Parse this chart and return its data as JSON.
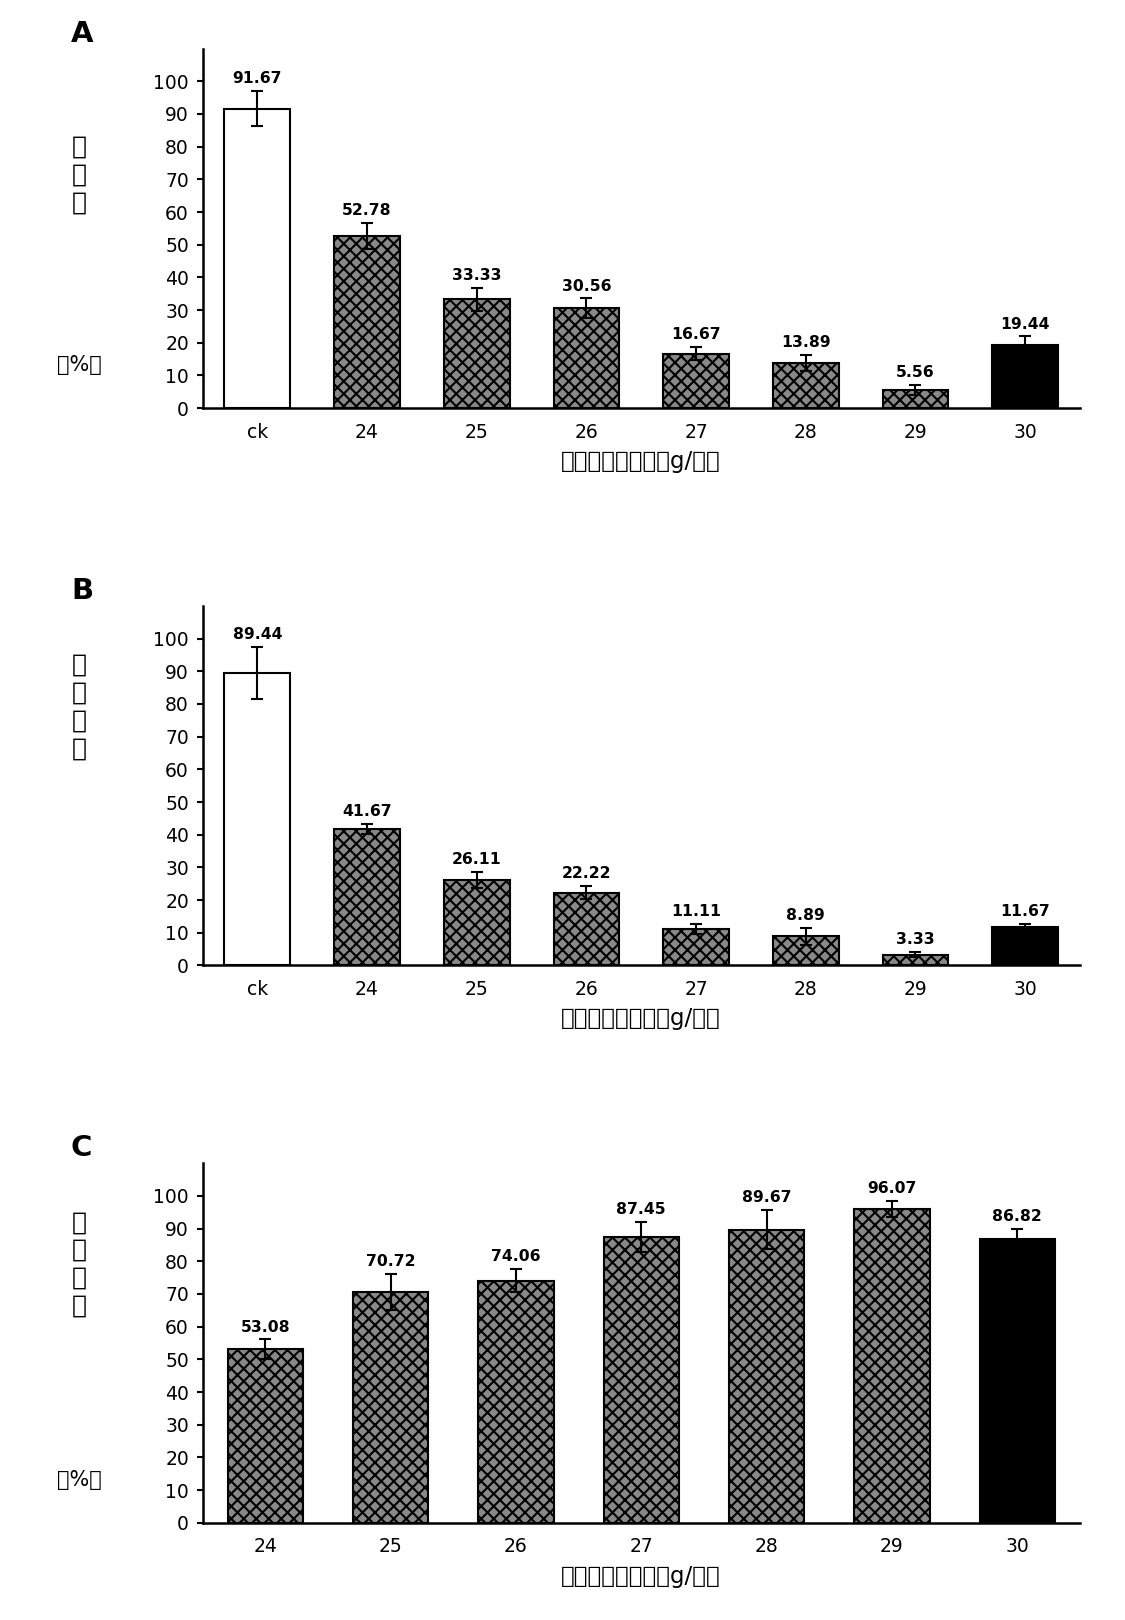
{
  "A": {
    "label": "A",
    "categories": [
      "ck",
      "24",
      "25",
      "26",
      "27",
      "28",
      "29",
      "30"
    ],
    "values": [
      91.67,
      52.78,
      33.33,
      30.56,
      16.67,
      13.89,
      5.56,
      19.44
    ],
    "errors": [
      5.5,
      4.0,
      3.5,
      3.0,
      2.0,
      2.5,
      1.5,
      2.5
    ],
    "ylabel_chars": [
      "发",
      "病",
      "率"
    ],
    "ylabel2": "（%）",
    "xlabel": "丁子香酚施用量（g/亩）",
    "ylim": [
      0,
      110
    ],
    "yticks": [
      0,
      10,
      20,
      30,
      40,
      50,
      60,
      70,
      80,
      90,
      100
    ],
    "colors": [
      "white",
      "hatch",
      "hatch",
      "hatch",
      "hatch",
      "hatch",
      "hatch",
      "black"
    ],
    "hatch": [
      "",
      "xxxx",
      "xxxx",
      "xxxx",
      "xxxx",
      "xxxx",
      "xxxx",
      ""
    ]
  },
  "B": {
    "label": "B",
    "categories": [
      "ck",
      "24",
      "25",
      "26",
      "27",
      "28",
      "29",
      "30"
    ],
    "values": [
      89.44,
      41.67,
      26.11,
      22.22,
      11.11,
      8.89,
      3.33,
      11.67
    ],
    "errors": [
      8.0,
      1.5,
      2.5,
      2.0,
      1.5,
      2.5,
      0.8,
      1.0
    ],
    "ylabel_chars": [
      "病",
      "情",
      "指",
      "数"
    ],
    "ylabel2": null,
    "xlabel": "丁子香酚施用量（g/亩）",
    "ylim": [
      0,
      110
    ],
    "yticks": [
      0,
      10,
      20,
      30,
      40,
      50,
      60,
      70,
      80,
      90,
      100
    ],
    "colors": [
      "white",
      "hatch",
      "hatch",
      "hatch",
      "hatch",
      "hatch",
      "hatch",
      "black"
    ],
    "hatch": [
      "",
      "xxxx",
      "xxxx",
      "xxxx",
      "xxxx",
      "xxxx",
      "xxxx",
      ""
    ]
  },
  "C": {
    "label": "C",
    "categories": [
      "24",
      "25",
      "26",
      "27",
      "28",
      "29",
      "30"
    ],
    "values": [
      53.08,
      70.72,
      74.06,
      87.45,
      89.67,
      96.07,
      86.82
    ],
    "errors": [
      3.0,
      5.5,
      3.5,
      4.5,
      6.0,
      2.5,
      3.0
    ],
    "ylabel_chars": [
      "防",
      "治",
      "效",
      "果"
    ],
    "ylabel2": "（%）",
    "xlabel": "丁子香酚施用量（g/亩）",
    "ylim": [
      0,
      110
    ],
    "yticks": [
      0,
      10,
      20,
      30,
      40,
      50,
      60,
      70,
      80,
      90,
      100
    ],
    "colors": [
      "hatch",
      "hatch",
      "hatch",
      "hatch",
      "hatch",
      "hatch",
      "black"
    ],
    "hatch": [
      "xxxx",
      "xxxx",
      "xxxx",
      "xxxx",
      "xxxx",
      "xxxx",
      ""
    ]
  },
  "value_labels_A": [
    "91.67",
    "52.78",
    "33.33",
    "30.56",
    "16.67",
    "13.89",
    "5.56",
    "19.44"
  ],
  "value_labels_B": [
    "89.44",
    "41.67",
    "26.11",
    "22.22",
    "11.11",
    "8.89",
    "3.33",
    "11.67"
  ],
  "value_labels_C": [
    "53.08",
    "70.72",
    "74.06",
    "87.45",
    "89.67",
    "96.07",
    "86.82"
  ]
}
